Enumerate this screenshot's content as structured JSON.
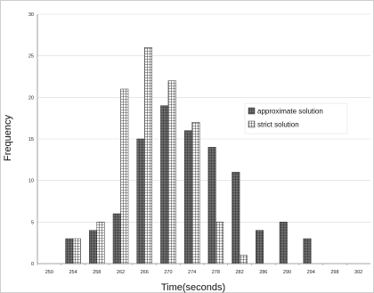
{
  "chart_data": {
    "type": "bar",
    "title": "",
    "xlabel": "Time(seconds)",
    "ylabel": "Frequency",
    "categories": [
      "250",
      "254",
      "258",
      "262",
      "266",
      "270",
      "274",
      "278",
      "282",
      "286",
      "290",
      "294",
      "298",
      "302"
    ],
    "series": [
      {
        "name": "approximate solution",
        "values": [
          0,
          3,
          4,
          6,
          15,
          19,
          16,
          14,
          11,
          4,
          5,
          3,
          0,
          0
        ]
      },
      {
        "name": "strict solution",
        "values": [
          0,
          3,
          5,
          21,
          26,
          22,
          17,
          5,
          1,
          0,
          0,
          0,
          0,
          0
        ]
      }
    ],
    "ylim": [
      0,
      30
    ],
    "yticks": [
      "0",
      "5",
      "10",
      "15",
      "20",
      "25",
      "30"
    ],
    "grid": true,
    "legend_position": "right"
  }
}
